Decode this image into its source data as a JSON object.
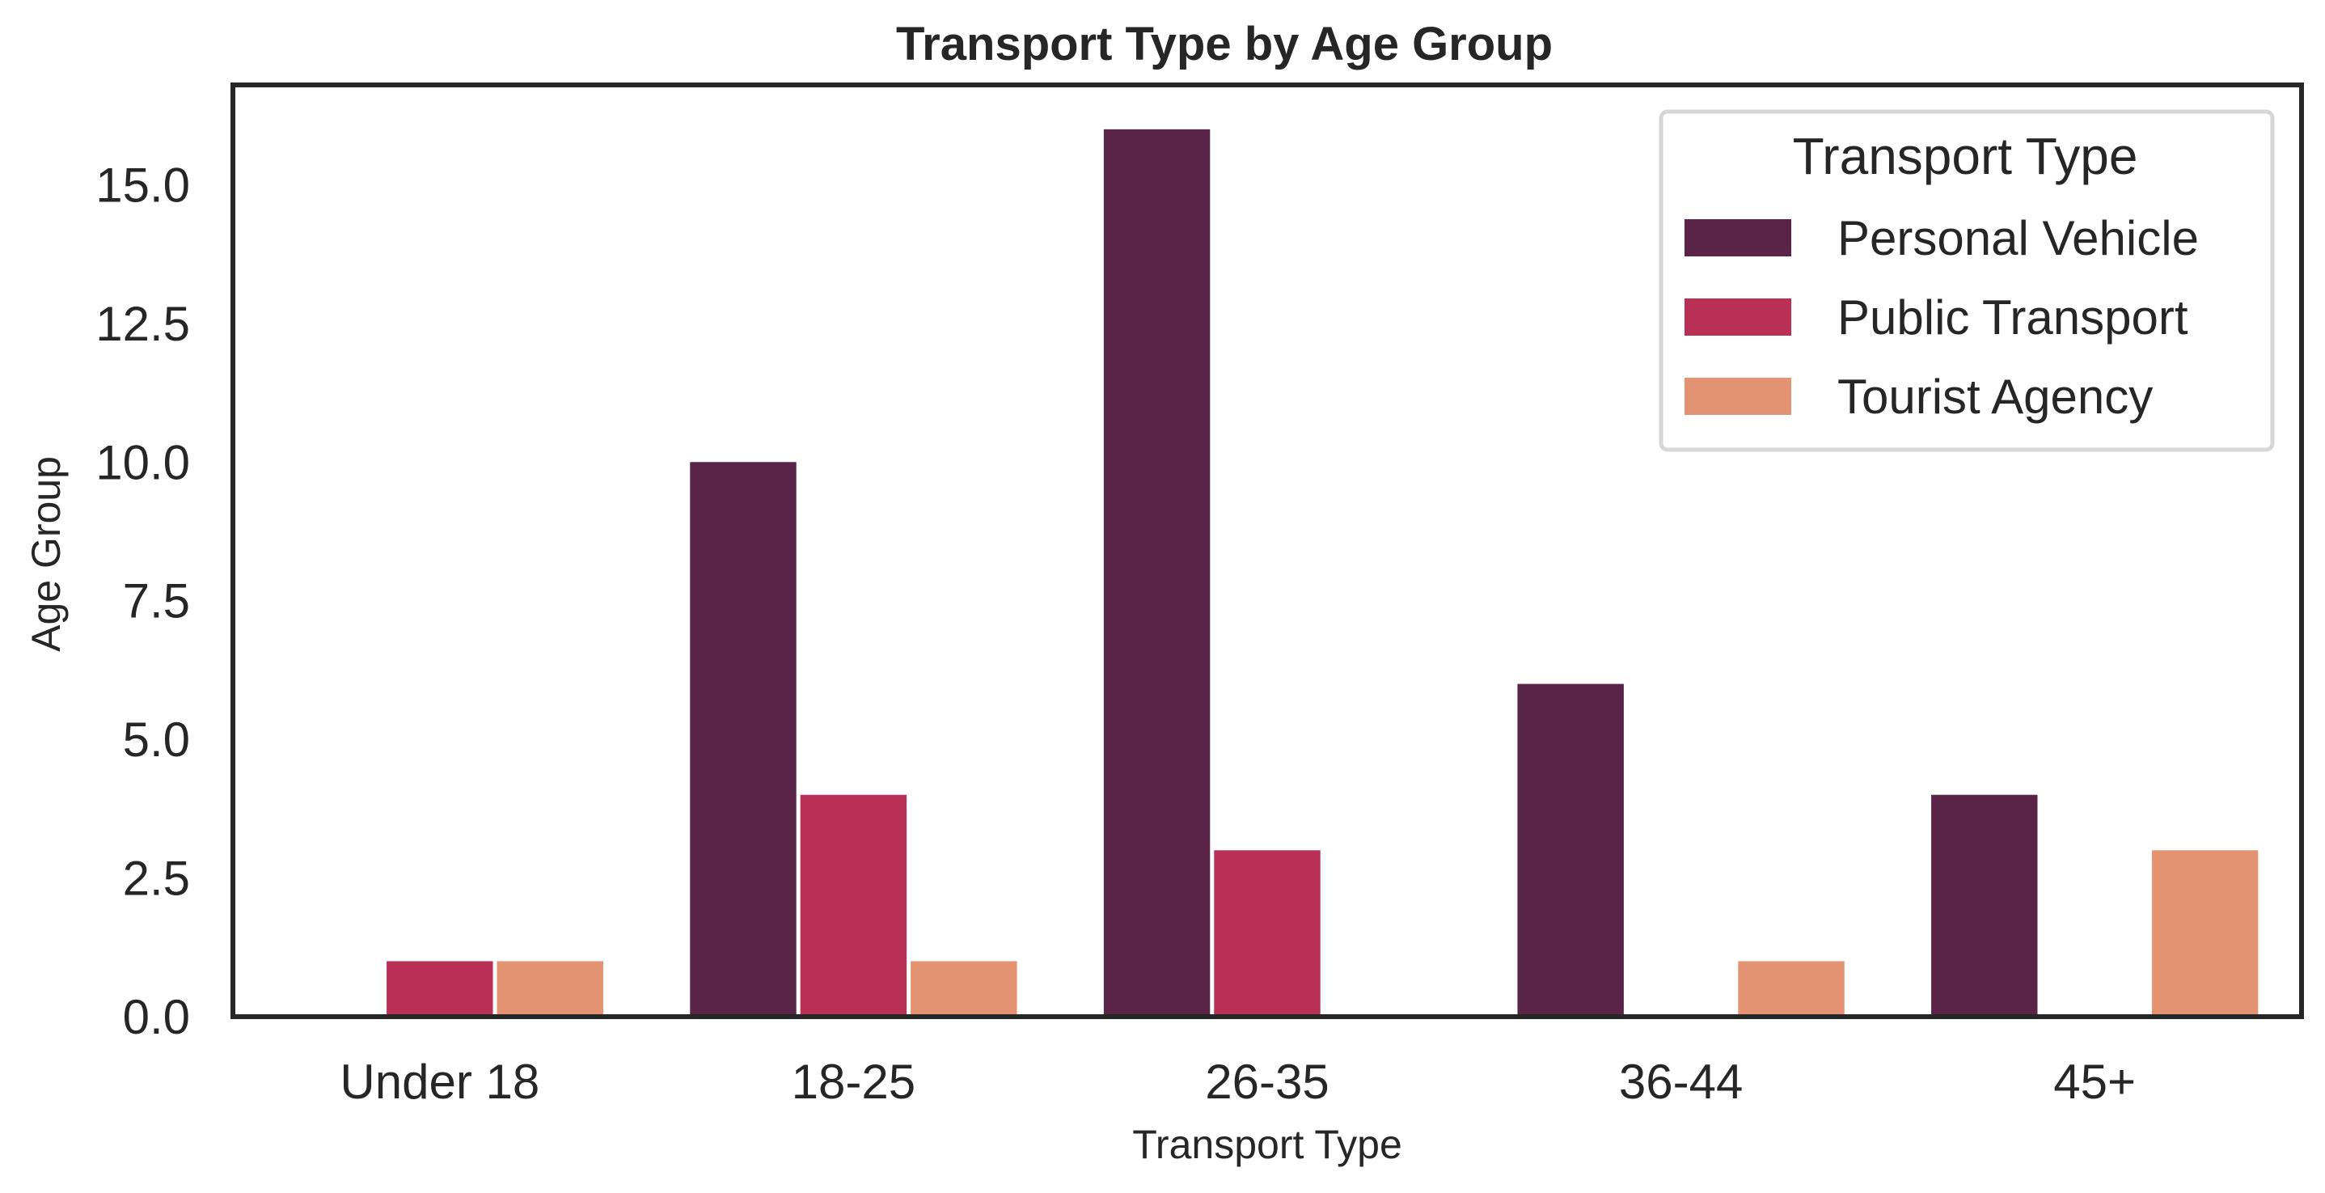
{
  "chart_data": {
    "type": "bar",
    "title": "Transport Type by Age Group",
    "xlabel": "Transport Type",
    "ylabel": "Age Group",
    "categories": [
      "Under 18",
      "18-25",
      "26-35",
      "36-44",
      "45+"
    ],
    "series": [
      {
        "name": "Personal Vehicle",
        "color": "#5a2449",
        "values": [
          0,
          10,
          16,
          6,
          4
        ]
      },
      {
        "name": "Public Transport",
        "color": "#b83055",
        "values": [
          1,
          4,
          3,
          0,
          0
        ]
      },
      {
        "name": "Tourist Agency",
        "color": "#e39272",
        "values": [
          1,
          1,
          0,
          1,
          3
        ]
      }
    ],
    "ylim": [
      0,
      16.8
    ],
    "yticks": [
      "0.0",
      "2.5",
      "5.0",
      "7.5",
      "10.0",
      "12.5",
      "15.0"
    ],
    "grid": false,
    "legend": {
      "title": "Transport Type",
      "placement": "top-right"
    }
  }
}
